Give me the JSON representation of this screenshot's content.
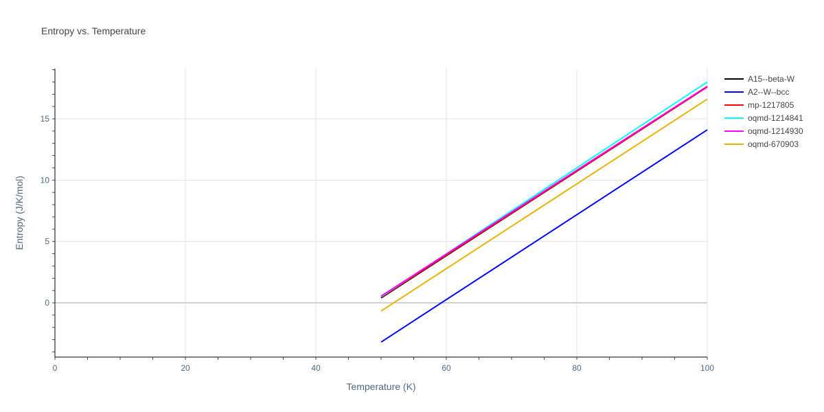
{
  "chart_data": {
    "type": "line",
    "title": "Entropy vs. Temperature",
    "xlabel": "Temperature (K)",
    "ylabel": "Entropy (J/K/mol)",
    "xlim": [
      0,
      100
    ],
    "ylim": [
      -4.5,
      19
    ],
    "x_ticks": [
      0,
      20,
      40,
      60,
      80,
      100
    ],
    "y_ticks": [
      0,
      5,
      10,
      15
    ],
    "grid": true,
    "legend_position": "right",
    "series": [
      {
        "name": "A15--beta-W",
        "color": "#000000",
        "x": [
          50,
          100
        ],
        "y": [
          0.4,
          17.6
        ]
      },
      {
        "name": "A2--W--bcc",
        "color": "#0000ff",
        "x": [
          50,
          100
        ],
        "y": [
          -3.2,
          14.1
        ]
      },
      {
        "name": "mp-1217805",
        "color": "#ff0000",
        "x": [
          50,
          100
        ],
        "y": [
          0.45,
          17.6
        ]
      },
      {
        "name": "oqmd-1214841",
        "color": "#00ffff",
        "x": [
          50,
          100
        ],
        "y": [
          0.5,
          18.0
        ]
      },
      {
        "name": "oqmd-1214930",
        "color": "#ff00ff",
        "x": [
          50,
          100
        ],
        "y": [
          0.55,
          17.65
        ]
      },
      {
        "name": "oqmd-670903",
        "color": "#e6b400",
        "x": [
          50,
          100
        ],
        "y": [
          -0.67,
          16.6
        ]
      }
    ]
  }
}
